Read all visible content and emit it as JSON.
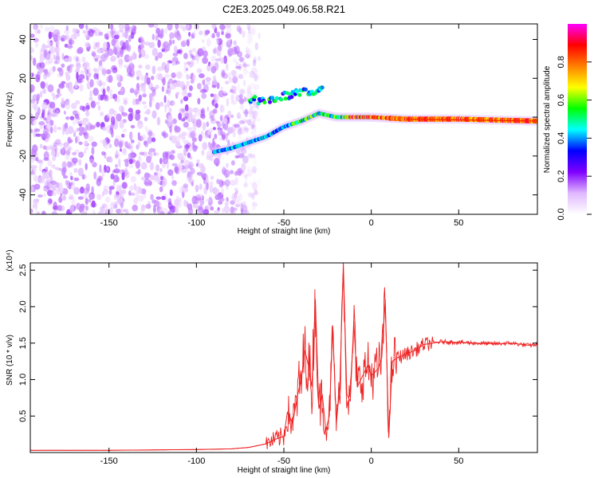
{
  "figure_title": "C2E3.2025.049.06.58.R21",
  "chart_data": [
    {
      "type": "heatmap",
      "xlabel": "Height of straight line (km)",
      "ylabel": "Frequency (Hz)",
      "xlim": [
        -195,
        95
      ],
      "ylim": [
        -50,
        48
      ],
      "xticks": [
        -150,
        -100,
        -50,
        0,
        50
      ],
      "yticks": [
        -40,
        -20,
        0,
        20,
        40
      ],
      "grid": false,
      "colorbar": {
        "label": "Normalized spectral amplitude",
        "range": [
          0.0,
          1.0
        ],
        "ticks": [
          0.0,
          0.2,
          0.4,
          0.6,
          0.8
        ],
        "tick_labels": [
          "0.0",
          "0.2",
          "0.4",
          "0.6",
          "0.8"
        ],
        "colors": [
          "#ffffff",
          "#e0b8ff",
          "#8000ff",
          "#0000ff",
          "#00ffff",
          "#00ff00",
          "#ffff00",
          "#ff8000",
          "#ff0000",
          "#ff00ff"
        ]
      },
      "features": {
        "noise_region_x": [
          -195,
          -70
        ],
        "signal_trace": [
          {
            "x": -90,
            "y": -18
          },
          {
            "x": -80,
            "y": -16
          },
          {
            "x": -70,
            "y": -13
          },
          {
            "x": -60,
            "y": -10
          },
          {
            "x": -50,
            "y": -5
          },
          {
            "x": -40,
            "y": -2
          },
          {
            "x": -30,
            "y": 2
          },
          {
            "x": -20,
            "y": 0
          },
          {
            "x": -10,
            "y": 0
          },
          {
            "x": 0,
            "y": 0
          },
          {
            "x": 20,
            "y": -1
          },
          {
            "x": 50,
            "y": -1
          },
          {
            "x": 95,
            "y": -2
          }
        ],
        "upper_branch": [
          {
            "x": -70,
            "y": 9
          },
          {
            "x": -60,
            "y": 9
          },
          {
            "x": -45,
            "y": 12
          },
          {
            "x": -35,
            "y": 13
          },
          {
            "x": -28,
            "y": 14
          }
        ]
      }
    },
    {
      "type": "line",
      "xlabel": "Height of straight line (km)",
      "ylabel": "SNR (10 * v/v)",
      "y_multiplier": "(x10⁴)",
      "xlim": [
        -195,
        95
      ],
      "ylim": [
        0.0,
        2.6
      ],
      "xticks": [
        -150,
        -100,
        -50,
        0,
        50
      ],
      "yticks": [
        0.5,
        1.0,
        1.5,
        2.0,
        2.5
      ],
      "ytick_labels": [
        "0.5",
        "1.0",
        "1.5",
        "2.0",
        "2.5"
      ],
      "grid": false,
      "series": [
        {
          "color": "#ee2222",
          "x": [
            -195,
            -150,
            -100,
            -80,
            -70,
            -60,
            -55,
            -50,
            -48,
            -45,
            -42,
            -40,
            -38,
            -36,
            -34,
            -32,
            -30,
            -28,
            -26,
            -24,
            -22,
            -20,
            -18,
            -16,
            -14,
            -12,
            -10,
            -8,
            -6,
            -4,
            -2,
            0,
            2,
            4,
            6,
            8,
            10,
            12,
            15,
            20,
            25,
            30,
            35,
            40,
            50,
            60,
            70,
            80,
            90,
            95
          ],
          "values": [
            0.03,
            0.03,
            0.04,
            0.05,
            0.07,
            0.12,
            0.18,
            0.22,
            0.55,
            0.4,
            0.8,
            1.0,
            1.4,
            1.2,
            0.9,
            2.1,
            0.6,
            0.8,
            0.3,
            0.5,
            1.7,
            0.4,
            0.9,
            2.6,
            0.8,
            0.7,
            1.8,
            0.9,
            1.0,
            1.1,
            1.2,
            1.05,
            1.1,
            1.15,
            1.3,
            2.1,
            0.2,
            1.25,
            1.3,
            1.35,
            1.4,
            1.48,
            1.5,
            1.52,
            1.51,
            1.5,
            1.49,
            1.5,
            1.47,
            1.48
          ]
        }
      ]
    }
  ]
}
